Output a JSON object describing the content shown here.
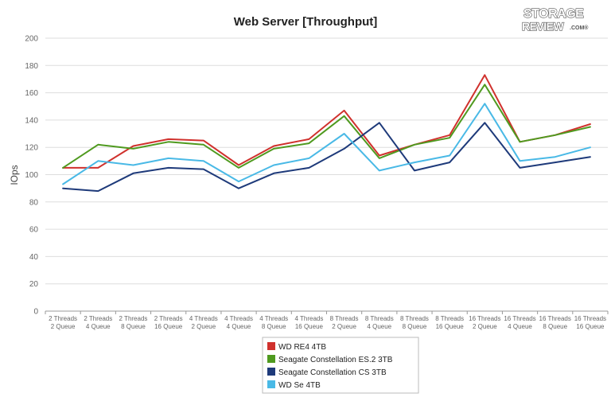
{
  "logo": {
    "line1": "STORAGE",
    "line2": "REVIEW",
    "suffix": ".COM®"
  },
  "chart_data": {
    "type": "line",
    "title": "Web Server [Throughput]",
    "xlabel": "",
    "ylabel": "IOps",
    "ylim": [
      0,
      200
    ],
    "yticks": [
      0,
      20,
      40,
      60,
      80,
      100,
      120,
      140,
      160,
      180,
      200
    ],
    "grid": true,
    "legend_position": "bottom-center",
    "categories": [
      [
        "2 Threads",
        "2 Queue"
      ],
      [
        "2 Threads",
        "4 Queue"
      ],
      [
        "2 Threads",
        "8 Queue"
      ],
      [
        "2 Threads",
        "16 Queue"
      ],
      [
        "4 Threads",
        "2 Queue"
      ],
      [
        "4 Threads",
        "4 Queue"
      ],
      [
        "4 Threads",
        "8 Queue"
      ],
      [
        "4 Threads",
        "16 Queue"
      ],
      [
        "8 Threads",
        "2 Queue"
      ],
      [
        "8 Threads",
        "4 Queue"
      ],
      [
        "8 Threads",
        "8 Queue"
      ],
      [
        "8 Threads",
        "16 Queue"
      ],
      [
        "16 Threads",
        "2 Queue"
      ],
      [
        "16 Threads",
        "4 Queue"
      ],
      [
        "16 Threads",
        "8 Queue"
      ],
      [
        "16 Threads",
        "16 Queue"
      ]
    ],
    "series": [
      {
        "name": "WD RE4 4TB",
        "color": "#d0312d",
        "values": [
          105,
          105,
          121,
          126,
          125,
          107,
          121,
          126,
          147,
          114,
          122,
          129,
          173,
          124,
          129,
          137
        ]
      },
      {
        "name": "Seagate Constellation ES.2 3TB",
        "color": "#4f9a1f",
        "values": [
          105,
          122,
          119,
          124,
          122,
          105,
          119,
          123,
          143,
          112,
          122,
          127,
          166,
          124,
          129,
          135
        ]
      },
      {
        "name": "Seagate Constellation CS 3TB",
        "color": "#1e3a7a",
        "values": [
          90,
          88,
          101,
          105,
          104,
          90,
          101,
          105,
          119,
          138,
          103,
          109,
          138,
          105,
          109,
          113
        ]
      },
      {
        "name": "WD Se 4TB",
        "color": "#49b9e6",
        "values": [
          93,
          110,
          107,
          112,
          110,
          95,
          107,
          112,
          130,
          103,
          109,
          114,
          152,
          110,
          113,
          120
        ]
      }
    ]
  }
}
